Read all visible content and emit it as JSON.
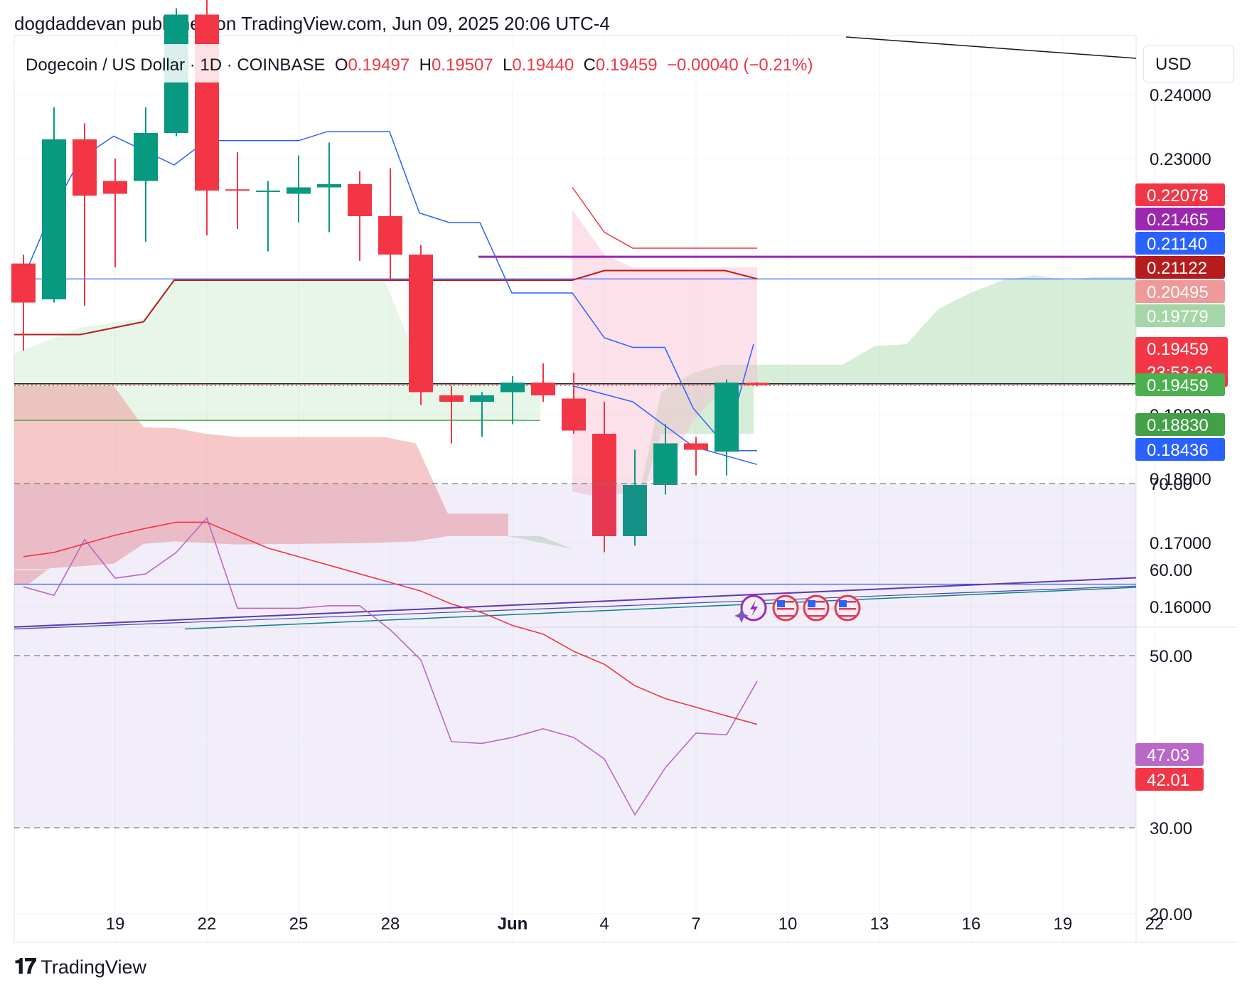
{
  "publisher": "dogdaddevan published on TradingView.com, Jun 09, 2025 20:06 UTC-4",
  "legend": {
    "symbol": "Dogecoin / US Dollar · 1D · COINBASE",
    "o_label": "O",
    "o": "0.19497",
    "h_label": "H",
    "h": "0.19507",
    "l_label": "L",
    "l": "0.19440",
    "c_label": "C",
    "c": "0.19459",
    "change": "−0.00040 (−0.21%)"
  },
  "currency_button": "USD",
  "footer_brand": "TradingView",
  "footer_icon": "tradingview-logo-icon",
  "event_icons": [
    "lightning-icon",
    "us-flag-icon",
    "us-flag-icon",
    "us-flag-icon"
  ],
  "colors": {
    "up": "#089981",
    "down": "#f23645",
    "kijun": "#b71c1c",
    "tenkan": "#2962ff",
    "rsi_line": "#ba68c8",
    "rsi_ma": "#f23645",
    "purple_line": "#9c27b0",
    "cloud_green": "#a5d6a7",
    "cloud_red": "#ef9a9a"
  },
  "chart_data": [
    {
      "type": "candlestick",
      "title": "Dogecoin / US Dollar · 1D · COINBASE",
      "x_ticks": [
        "19",
        "22",
        "25",
        "28",
        "Jun",
        "4",
        "7",
        "10",
        "13",
        "16",
        "19",
        "22"
      ],
      "y_ticks": [
        "0.24000",
        "0.23000",
        "0.19000",
        "0.18000",
        "0.17000",
        "0.16000"
      ],
      "ylim": [
        0.1565,
        0.2505
      ],
      "grid": true,
      "candles": [
        {
          "date": "May 16",
          "o": 0.2136,
          "h": 0.215,
          "l": 0.2,
          "c": 0.2075
        },
        {
          "date": "May 17",
          "o": 0.208,
          "h": 0.238,
          "l": 0.2075,
          "c": 0.233
        },
        {
          "date": "May 18",
          "o": 0.233,
          "h": 0.2355,
          "l": 0.207,
          "c": 0.2242
        },
        {
          "date": "May 19",
          "o": 0.2265,
          "h": 0.23,
          "l": 0.213,
          "c": 0.2245
        },
        {
          "date": "May 20",
          "o": 0.2265,
          "h": 0.238,
          "l": 0.217,
          "c": 0.234
        },
        {
          "date": "May 21",
          "o": 0.234,
          "h": 0.2535,
          "l": 0.2335,
          "c": 0.2525
        },
        {
          "date": "May 22",
          "o": 0.2525,
          "h": 0.255,
          "l": 0.218,
          "c": 0.225
        },
        {
          "date": "May 23",
          "o": 0.2252,
          "h": 0.231,
          "l": 0.219,
          "c": 0.225
        },
        {
          "date": "May 24",
          "o": 0.2248,
          "h": 0.2265,
          "l": 0.2155,
          "c": 0.225
        },
        {
          "date": "May 25",
          "o": 0.2245,
          "h": 0.2305,
          "l": 0.22,
          "c": 0.2255
        },
        {
          "date": "May 26",
          "o": 0.2255,
          "h": 0.2325,
          "l": 0.2185,
          "c": 0.226
        },
        {
          "date": "May 27",
          "o": 0.226,
          "h": 0.228,
          "l": 0.214,
          "c": 0.221
        },
        {
          "date": "May 28",
          "o": 0.221,
          "h": 0.2285,
          "l": 0.211,
          "c": 0.215
        },
        {
          "date": "May 29",
          "o": 0.215,
          "h": 0.2165,
          "l": 0.1915,
          "c": 0.1935
        },
        {
          "date": "May 30",
          "o": 0.193,
          "h": 0.1945,
          "l": 0.1855,
          "c": 0.192
        },
        {
          "date": "May 31",
          "o": 0.192,
          "h": 0.1935,
          "l": 0.1865,
          "c": 0.193
        },
        {
          "date": "Jun 1",
          "o": 0.1935,
          "h": 0.196,
          "l": 0.1885,
          "c": 0.195
        },
        {
          "date": "Jun 2",
          "o": 0.195,
          "h": 0.198,
          "l": 0.192,
          "c": 0.193
        },
        {
          "date": "Jun 3",
          "o": 0.1925,
          "h": 0.1965,
          "l": 0.187,
          "c": 0.1875
        },
        {
          "date": "Jun 4",
          "o": 0.187,
          "h": 0.192,
          "l": 0.1685,
          "c": 0.171
        },
        {
          "date": "Jun 5",
          "o": 0.171,
          "h": 0.1845,
          "l": 0.1695,
          "c": 0.179
        },
        {
          "date": "Jun 6",
          "o": 0.179,
          "h": 0.1885,
          "l": 0.1775,
          "c": 0.1855
        },
        {
          "date": "Jun 7",
          "o": 0.1855,
          "h": 0.1865,
          "l": 0.1805,
          "c": 0.1845
        },
        {
          "date": "Jun 8",
          "o": 0.1842,
          "h": 0.1955,
          "l": 0.1805,
          "c": 0.195
        },
        {
          "date": "Jun 9",
          "o": 0.19497,
          "h": 0.19507,
          "l": 0.1944,
          "c": 0.19459
        }
      ],
      "price_labels": [
        {
          "value": 0.22078,
          "text": "0.22078",
          "color": "#f23645"
        },
        {
          "value": 0.21465,
          "text": "0.21465",
          "color": "#9c27b0"
        },
        {
          "value": 0.2114,
          "text": "0.21140",
          "color": "#2962ff"
        },
        {
          "value": 0.21122,
          "text": "0.21122",
          "color": "#b71c1c"
        },
        {
          "value": 0.20495,
          "text": "0.20495",
          "color": "#ef9a9a"
        },
        {
          "value": 0.19779,
          "text": "0.19779",
          "color": "#a5d6a7"
        },
        {
          "value": 0.19459,
          "text": "0.19459",
          "sub": "23:53:36",
          "color": "#f23645"
        },
        {
          "value": 0.19459,
          "text": "0.19459",
          "color": "#4caf50"
        },
        {
          "value": 0.1883,
          "text": "0.18830",
          "color": "#43a047"
        },
        {
          "value": 0.18436,
          "text": "0.18436",
          "color": "#2962ff"
        }
      ]
    },
    {
      "type": "line",
      "title": "RSI",
      "y_ticks": [
        "70.00",
        "60.00",
        "50.00",
        "30.00",
        "20.00"
      ],
      "ylim": [
        17,
        73
      ],
      "band": [
        30,
        70
      ],
      "series": [
        {
          "color": "#ba68c8",
          "values": [
            58,
            57,
            63.5,
            59,
            59.5,
            62,
            66,
            55.5,
            55.5,
            55.5,
            55.8,
            55.8,
            53,
            49.5,
            40,
            39.8,
            40.5,
            41.5,
            40.5,
            38,
            31.5,
            37,
            41,
            40.8,
            47.03
          ],
          "last": "47.03"
        },
        {
          "color": "#f23645",
          "values": [
            61.5,
            62,
            63,
            64,
            64.8,
            65.5,
            65.5,
            64,
            62.5,
            61.5,
            60.5,
            59.5,
            58.5,
            57.5,
            56,
            55,
            53.5,
            52.5,
            50.5,
            49,
            46.5,
            45,
            44,
            43,
            42.01
          ],
          "last": "42.01"
        }
      ]
    }
  ]
}
